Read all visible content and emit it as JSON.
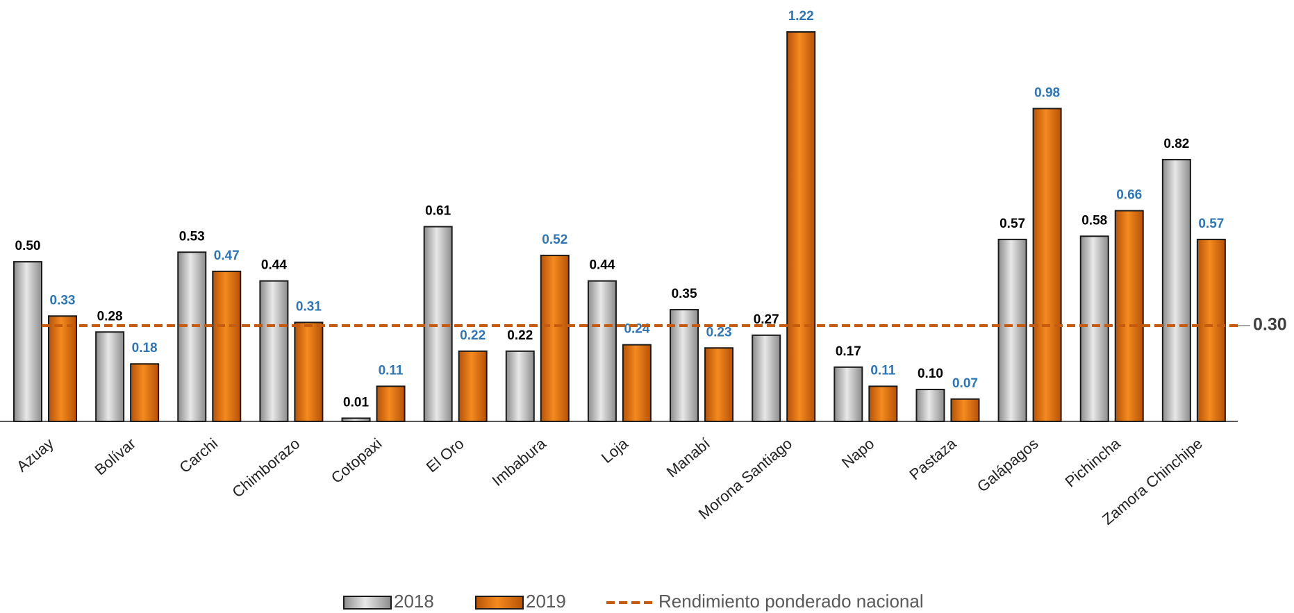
{
  "chart_data": {
    "type": "bar",
    "categories": [
      "Azuay",
      "Bolívar",
      "Carchi",
      "Chimborazo",
      "Cotopaxi",
      "El Oro",
      "Imbabura",
      "Loja",
      "Manabí",
      "Morona Santiago",
      "Napo",
      "Pastaza",
      "Galápagos",
      "Pichincha",
      "Zamora Chinchipe"
    ],
    "series": [
      {
        "name": "2018",
        "color": "#b0b0b0",
        "label_color": "#000000",
        "values": [
          0.5,
          0.28,
          0.53,
          0.44,
          0.01,
          0.61,
          0.22,
          0.44,
          0.35,
          0.27,
          0.17,
          0.1,
          0.57,
          0.58,
          0.82
        ],
        "value_labels": [
          "0.50",
          "0.28",
          "0.53",
          "0.44",
          "0.01",
          "0.61",
          "0.22",
          "0.44",
          "0.35",
          "0.27",
          "0.17",
          "0.10",
          "0.57",
          "0.58",
          "0.82"
        ]
      },
      {
        "name": "2019",
        "color": "#e36c0a",
        "label_color": "#2e75b6",
        "values": [
          0.33,
          0.18,
          0.47,
          0.31,
          0.11,
          0.22,
          0.52,
          0.24,
          0.23,
          1.22,
          0.11,
          0.07,
          0.98,
          0.66,
          0.57
        ],
        "value_labels": [
          "0.33",
          "0.18",
          "0.47",
          "0.31",
          "0.11",
          "0.22",
          "0.52",
          "0.24",
          "0.23",
          "1.22",
          "0.11",
          "0.07",
          "0.98",
          "0.66",
          "0.57"
        ]
      }
    ],
    "reference_line": {
      "name": "Rendimiento ponderado nacional",
      "value": 0.3,
      "value_label": "0.30",
      "color": "#c55a11"
    }
  }
}
